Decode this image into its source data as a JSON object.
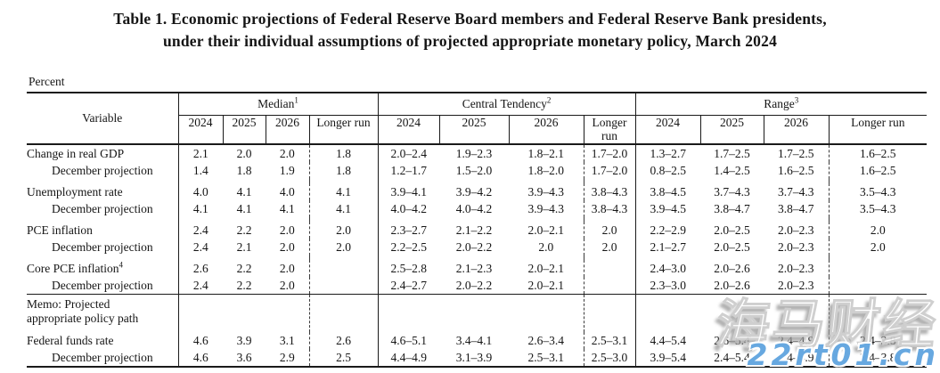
{
  "title": {
    "line1": "Table 1. Economic projections of Federal Reserve Board members and Federal Reserve Bank presidents,",
    "line2": "under their individual assumptions of projected appropriate monetary policy, March 2024"
  },
  "percent_label": "Percent",
  "table": {
    "variable_header": "Variable",
    "groups": [
      {
        "label": "Median",
        "sup": "1",
        "years": [
          "2024",
          "2025",
          "2026",
          "Longer run"
        ]
      },
      {
        "label": "Central Tendency",
        "sup": "2",
        "years": [
          "2024",
          "2025",
          "2026",
          "Longer run"
        ]
      },
      {
        "label": "Range",
        "sup": "3",
        "years": [
          "2024",
          "2025",
          "2026",
          "Longer run"
        ]
      }
    ],
    "rows": [
      {
        "type": "data",
        "label": "Change in real GDP",
        "sup": "",
        "indent": false,
        "cells": [
          "2.1",
          "2.0",
          "2.0",
          "1.8",
          "2.0–2.4",
          "1.9–2.3",
          "1.8–2.1",
          "1.7–2.0",
          "1.3–2.7",
          "1.7–2.5",
          "1.7–2.5",
          "1.6–2.5"
        ]
      },
      {
        "type": "data",
        "label": "December projection",
        "sup": "",
        "indent": true,
        "cells": [
          "1.4",
          "1.8",
          "1.9",
          "1.8",
          "1.2–1.7",
          "1.5–2.0",
          "1.8–2.0",
          "1.7–2.0",
          "0.8–2.5",
          "1.4–2.5",
          "1.6–2.5",
          "1.6–2.5"
        ]
      },
      {
        "type": "spacer"
      },
      {
        "type": "data",
        "label": "Unemployment rate",
        "sup": "",
        "indent": false,
        "cells": [
          "4.0",
          "4.1",
          "4.0",
          "4.1",
          "3.9–4.1",
          "3.9–4.2",
          "3.9–4.3",
          "3.8–4.3",
          "3.8–4.5",
          "3.7–4.3",
          "3.7–4.3",
          "3.5–4.3"
        ]
      },
      {
        "type": "data",
        "label": "December projection",
        "sup": "",
        "indent": true,
        "cells": [
          "4.1",
          "4.1",
          "4.1",
          "4.1",
          "4.0–4.2",
          "4.0–4.2",
          "3.9–4.3",
          "3.8–4.3",
          "3.9–4.5",
          "3.8–4.7",
          "3.8–4.7",
          "3.5–4.3"
        ]
      },
      {
        "type": "spacer"
      },
      {
        "type": "data",
        "label": "PCE inflation",
        "sup": "",
        "indent": false,
        "cells": [
          "2.4",
          "2.2",
          "2.0",
          "2.0",
          "2.3–2.7",
          "2.1–2.2",
          "2.0–2.1",
          "2.0",
          "2.2–2.9",
          "2.0–2.5",
          "2.0–2.3",
          "2.0"
        ]
      },
      {
        "type": "data",
        "label": "December projection",
        "sup": "",
        "indent": true,
        "cells": [
          "2.4",
          "2.1",
          "2.0",
          "2.0",
          "2.2–2.5",
          "2.0–2.2",
          "2.0",
          "2.0",
          "2.1–2.7",
          "2.0–2.5",
          "2.0–2.3",
          "2.0"
        ]
      },
      {
        "type": "spacer"
      },
      {
        "type": "data",
        "label": "Core PCE inflation",
        "sup": "4",
        "indent": false,
        "cells": [
          "2.6",
          "2.2",
          "2.0",
          "",
          "2.5–2.8",
          "2.1–2.3",
          "2.0–2.1",
          "",
          "2.4–3.0",
          "2.0–2.6",
          "2.0–2.3",
          ""
        ]
      },
      {
        "type": "data",
        "label": "December projection",
        "sup": "",
        "indent": true,
        "cells": [
          "2.4",
          "2.2",
          "2.0",
          "",
          "2.4–2.7",
          "2.0–2.2",
          "2.0–2.1",
          "",
          "2.3–3.0",
          "2.0–2.6",
          "2.0–2.3",
          ""
        ]
      },
      {
        "type": "memo",
        "label_lines": [
          "Memo: Projected",
          "appropriate policy path"
        ]
      },
      {
        "type": "data",
        "label": "Federal funds rate",
        "sup": "",
        "indent": false,
        "cells": [
          "4.6",
          "3.9",
          "3.1",
          "2.6",
          "4.6–5.1",
          "3.4–4.1",
          "2.6–3.4",
          "2.5–3.1",
          "4.4–5.4",
          "2.6–5.4",
          "2.4–4.9",
          "2.4–3.8"
        ]
      },
      {
        "type": "data",
        "label": "December projection",
        "sup": "",
        "indent": true,
        "cells": [
          "4.6",
          "3.6",
          "2.9",
          "2.5",
          "4.4–4.9",
          "3.1–3.9",
          "2.5–3.1",
          "2.5–3.0",
          "3.9–5.4",
          "2.4–5.4",
          "2.4–4.9",
          "2.4–3.8"
        ]
      }
    ]
  },
  "watermark": {
    "cn_text": "海马财经",
    "url_text": "22rt01.cn",
    "url_color": "#67a8e0"
  }
}
